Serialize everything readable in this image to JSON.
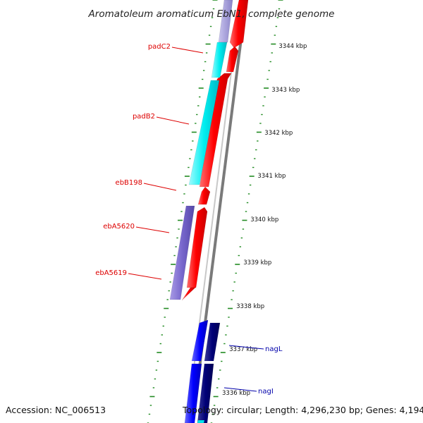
{
  "title": "Aromatoleum aromaticum EbN1, complete genome",
  "footer": {
    "accession": "Accession: NC_006513",
    "topology": "Topology: circular; Length: 4,296,230 bp; Genes: 4,194"
  },
  "scale_ticks": [
    "3344 kbp",
    "3343 kbp",
    "3342 kbp",
    "3341 kbp",
    "3340 kbp",
    "3339 kbp",
    "3338 kbp",
    "3337 kbp",
    "3336 kbp"
  ],
  "gene_labels": [
    {
      "text": "padC2",
      "color": "#dd0000"
    },
    {
      "text": "padB2",
      "color": "#dd0000"
    },
    {
      "text": "ebB198",
      "color": "#dd0000"
    },
    {
      "text": "ebA5620",
      "color": "#dd0000"
    },
    {
      "text": "ebA5619",
      "color": "#dd0000"
    },
    {
      "text": "nagL",
      "color": "#0000aa"
    },
    {
      "text": "nagI",
      "color": "#0000aa"
    }
  ],
  "colors": {
    "backbone": "#888888",
    "forward_cds": "#ff0000",
    "reverse_cds": "#0000ff",
    "reverse_cds_dark": "#000077",
    "cyan_feature": "#00e5ee",
    "lavender_feature": "#7766cc",
    "tick_color": "#228B22"
  }
}
